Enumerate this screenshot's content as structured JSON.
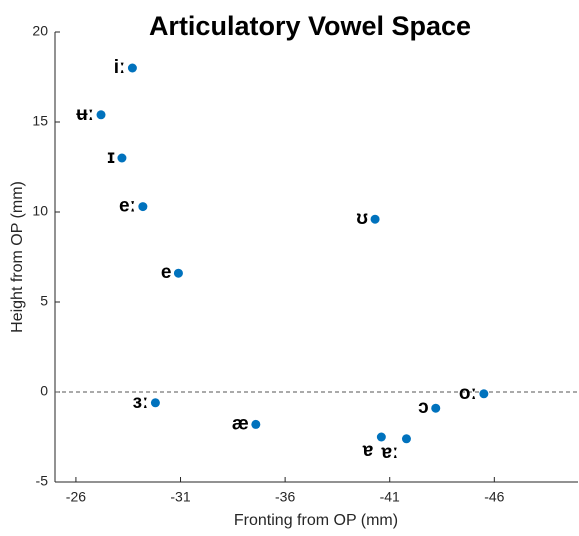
{
  "chart_data": {
    "type": "scatter",
    "title": "Articulatory Vowel Space",
    "xlabel": "Fronting from OP (mm)",
    "ylabel": "Height from OP (mm)",
    "series": [
      {
        "color": "#0072bd",
        "labels": [
          "iː",
          "ʉː",
          "ɪ",
          "eː",
          "e",
          "ʊ",
          "ɜː",
          "æ",
          "ɐ",
          "ɐː",
          "ɔ",
          "oː"
        ],
        "x": [
          -28.7,
          -27.2,
          -28.2,
          -29.2,
          -30.9,
          -40.3,
          -29.8,
          -34.6,
          -40.6,
          -41.8,
          -43.2,
          -45.5
        ],
        "values": [
          18.0,
          15.4,
          13.0,
          10.3,
          6.6,
          9.6,
          -0.6,
          -1.8,
          -2.5,
          -2.6,
          -0.9,
          -0.1
        ]
      }
    ],
    "xlim": [
      -25,
      -50
    ],
    "xticks": [
      -26,
      -31,
      -36,
      -41,
      -46
    ],
    "ylim": [
      -5,
      20
    ],
    "yticks": [
      -5,
      0,
      5,
      10,
      15,
      20
    ],
    "zero_line": true
  }
}
